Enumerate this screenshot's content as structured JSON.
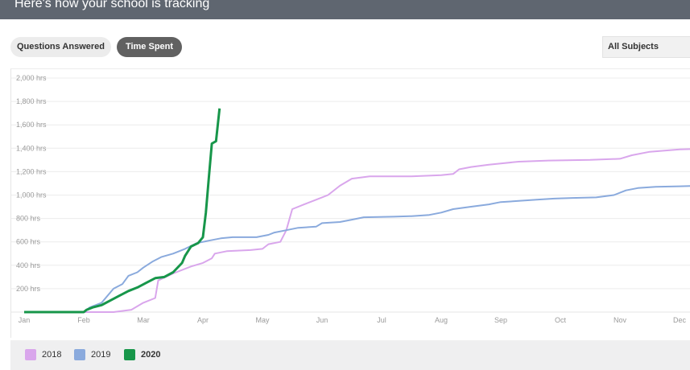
{
  "header": {
    "title": "Here's how your school is tracking"
  },
  "toggles": {
    "questions_label": "Questions Answered",
    "time_label": "Time Spent",
    "active": "Time Spent"
  },
  "subject_filter": {
    "selected": "All Subjects"
  },
  "chart_data": {
    "type": "line",
    "title": "",
    "xlabel": "",
    "ylabel": "",
    "y_unit_suffix": " hrs",
    "ylim": [
      0,
      2000
    ],
    "y_ticks": [
      200,
      400,
      600,
      800,
      1000,
      1200,
      1400,
      1600,
      1800,
      2000
    ],
    "x_categories": [
      "Jan",
      "Feb",
      "Mar",
      "Apr",
      "May",
      "Jun",
      "Jul",
      "Aug",
      "Sep",
      "Oct",
      "Nov",
      "Dec"
    ],
    "grid": true,
    "legend_position": "bottom",
    "series": [
      {
        "name": "2018",
        "color": "#d9a6ec",
        "points": [
          [
            0,
            0
          ],
          [
            1.0,
            0
          ],
          [
            1.5,
            0
          ],
          [
            1.8,
            20
          ],
          [
            2.0,
            80
          ],
          [
            2.2,
            120
          ],
          [
            2.25,
            270
          ],
          [
            2.5,
            330
          ],
          [
            2.8,
            390
          ],
          [
            3.0,
            420
          ],
          [
            3.15,
            460
          ],
          [
            3.2,
            500
          ],
          [
            3.4,
            520
          ],
          [
            3.8,
            530
          ],
          [
            4.0,
            540
          ],
          [
            4.1,
            580
          ],
          [
            4.3,
            600
          ],
          [
            4.4,
            700
          ],
          [
            4.5,
            880
          ],
          [
            4.7,
            920
          ],
          [
            4.9,
            960
          ],
          [
            5.1,
            1000
          ],
          [
            5.3,
            1080
          ],
          [
            5.5,
            1140
          ],
          [
            5.8,
            1160
          ],
          [
            6.5,
            1160
          ],
          [
            7.0,
            1170
          ],
          [
            7.2,
            1180
          ],
          [
            7.3,
            1220
          ],
          [
            7.5,
            1240
          ],
          [
            7.8,
            1260
          ],
          [
            8.0,
            1270
          ],
          [
            8.3,
            1285
          ],
          [
            8.8,
            1295
          ],
          [
            9.5,
            1300
          ],
          [
            10.0,
            1310
          ],
          [
            10.2,
            1340
          ],
          [
            10.5,
            1370
          ],
          [
            11.0,
            1390
          ],
          [
            11.3,
            1395
          ],
          [
            11.8,
            1400
          ]
        ]
      },
      {
        "name": "2019",
        "color": "#8aaadd",
        "points": [
          [
            0,
            0
          ],
          [
            1.0,
            0
          ],
          [
            1.1,
            40
          ],
          [
            1.3,
            80
          ],
          [
            1.5,
            200
          ],
          [
            1.65,
            240
          ],
          [
            1.75,
            310
          ],
          [
            1.9,
            340
          ],
          [
            2.0,
            380
          ],
          [
            2.15,
            430
          ],
          [
            2.3,
            470
          ],
          [
            2.5,
            500
          ],
          [
            2.7,
            540
          ],
          [
            2.9,
            590
          ],
          [
            3.1,
            610
          ],
          [
            3.3,
            630
          ],
          [
            3.5,
            640
          ],
          [
            3.9,
            640
          ],
          [
            4.1,
            660
          ],
          [
            4.2,
            680
          ],
          [
            4.4,
            700
          ],
          [
            4.6,
            720
          ],
          [
            4.9,
            730
          ],
          [
            5.0,
            760
          ],
          [
            5.3,
            770
          ],
          [
            5.5,
            790
          ],
          [
            5.7,
            810
          ],
          [
            6.2,
            815
          ],
          [
            6.5,
            820
          ],
          [
            6.8,
            830
          ],
          [
            7.0,
            850
          ],
          [
            7.2,
            880
          ],
          [
            7.5,
            900
          ],
          [
            7.8,
            920
          ],
          [
            8.0,
            940
          ],
          [
            8.3,
            950
          ],
          [
            8.6,
            960
          ],
          [
            8.9,
            970
          ],
          [
            9.2,
            975
          ],
          [
            9.6,
            980
          ],
          [
            9.9,
            1000
          ],
          [
            10.1,
            1040
          ],
          [
            10.3,
            1060
          ],
          [
            10.6,
            1070
          ],
          [
            11.0,
            1075
          ],
          [
            11.4,
            1080
          ],
          [
            11.8,
            1085
          ]
        ]
      },
      {
        "name": "2020",
        "color": "#17964a",
        "points": [
          [
            0,
            0
          ],
          [
            1.0,
            0
          ],
          [
            1.05,
            20
          ],
          [
            1.15,
            40
          ],
          [
            1.3,
            60
          ],
          [
            1.45,
            100
          ],
          [
            1.6,
            140
          ],
          [
            1.75,
            180
          ],
          [
            1.9,
            210
          ],
          [
            2.05,
            250
          ],
          [
            2.2,
            290
          ],
          [
            2.35,
            300
          ],
          [
            2.5,
            340
          ],
          [
            2.65,
            420
          ],
          [
            2.7,
            480
          ],
          [
            2.8,
            560
          ],
          [
            2.92,
            590
          ],
          [
            3.0,
            640
          ],
          [
            3.05,
            850
          ],
          [
            3.1,
            1150
          ],
          [
            3.15,
            1440
          ],
          [
            3.22,
            1460
          ],
          [
            3.25,
            1600
          ],
          [
            3.28,
            1740
          ]
        ]
      }
    ]
  }
}
